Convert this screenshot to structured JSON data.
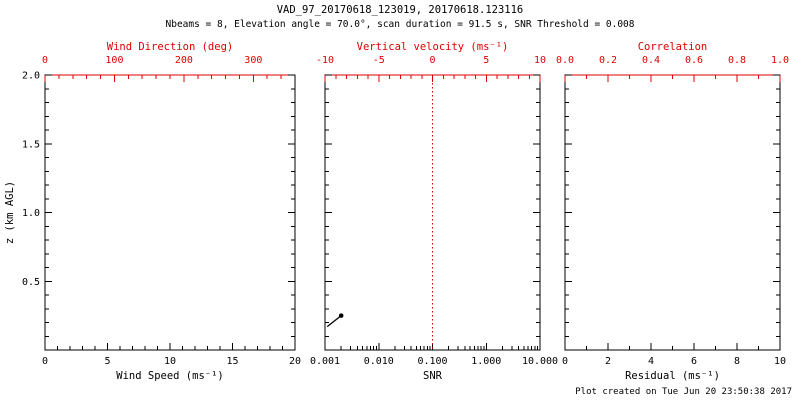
{
  "header": {
    "title": "VAD_97_20170618_123019, 20170618.123116",
    "subtitle": "Nbeams = 8, Elevation angle = 70.0°, scan duration = 91.5 s, SNR Threshold = 0.008"
  },
  "footer": {
    "created": "Plot created on Tue Jun 20 23:50:38 2017"
  },
  "colors": {
    "axis": "#000000",
    "secondary": "#dd0000",
    "background": "#ffffff"
  },
  "chart_data": [
    {
      "type": "line",
      "name": "wind-speed-panel",
      "bottom_axis": {
        "label": "Wind Speed (ms⁻¹)",
        "scale": "linear",
        "lim": [
          0,
          20
        ],
        "ticks": [
          0,
          5,
          10,
          15,
          20
        ],
        "tick_labels": [
          "0",
          "5",
          "10",
          "15",
          "20"
        ],
        "minor_div": 5
      },
      "top_axis": {
        "label": "Wind Direction (deg)",
        "scale": "linear",
        "lim": [
          0,
          360
        ],
        "ticks": [
          0,
          100,
          200,
          300
        ],
        "tick_labels": [
          "0",
          "100",
          "200",
          "300"
        ],
        "minor_div": 5
      },
      "left_axis": {
        "label": "z (km AGL)",
        "lim": [
          0,
          2.0
        ],
        "ticks": [
          0.5,
          1.0,
          1.5,
          2.0
        ],
        "tick_labels": [
          "0.5",
          "1.0",
          "1.5",
          "2.0"
        ],
        "minor_div": 5
      },
      "series": []
    },
    {
      "type": "line",
      "name": "snr-panel",
      "bottom_axis": {
        "label": "SNR",
        "scale": "log",
        "lim": [
          0.001,
          10
        ],
        "ticks": [
          0.001,
          0.01,
          0.1,
          1,
          10
        ],
        "tick_labels": [
          "0.001",
          "0.010",
          "0.100",
          "1.000",
          "10.000"
        ],
        "minor_div": 0
      },
      "top_axis": {
        "label": "Vertical velocity (ms⁻¹)",
        "scale": "linear",
        "lim": [
          -10,
          10
        ],
        "ticks": [
          -10,
          -5,
          0,
          5,
          10
        ],
        "tick_labels": [
          "-10",
          "-5",
          "0",
          "5",
          "10"
        ],
        "minor_div": 5
      },
      "left_axis": {
        "label": "",
        "lim": [
          0,
          2.0
        ],
        "ticks": [
          0.5,
          1.0,
          1.5,
          2.0
        ],
        "tick_labels": [],
        "minor_div": 5
      },
      "reference_line": {
        "axis": "top",
        "value": 0,
        "style": "dotted",
        "color": "#dd0000"
      },
      "series": [
        {
          "name": "snr-profile",
          "x": [
            0.0011,
            0.002
          ],
          "y": [
            0.17,
            0.25
          ],
          "marker_last": true
        }
      ]
    },
    {
      "type": "line",
      "name": "residual-panel",
      "bottom_axis": {
        "label": "Residual (ms⁻¹)",
        "scale": "linear",
        "lim": [
          0,
          10
        ],
        "ticks": [
          0,
          2,
          4,
          6,
          8,
          10
        ],
        "tick_labels": [
          "0",
          "2",
          "4",
          "6",
          "8",
          "10"
        ],
        "minor_div": 2
      },
      "top_axis": {
        "label": "Correlation",
        "scale": "linear",
        "lim": [
          0,
          1
        ],
        "ticks": [
          0.0,
          0.2,
          0.4,
          0.6,
          0.8,
          1.0
        ],
        "tick_labels": [
          "0.0",
          "0.2",
          "0.4",
          "0.6",
          "0.8",
          "1.0"
        ],
        "minor_div": 2
      },
      "left_axis": {
        "label": "",
        "lim": [
          0,
          2.0
        ],
        "ticks": [
          0.5,
          1.0,
          1.5,
          2.0
        ],
        "tick_labels": [],
        "minor_div": 5
      },
      "series": []
    }
  ]
}
